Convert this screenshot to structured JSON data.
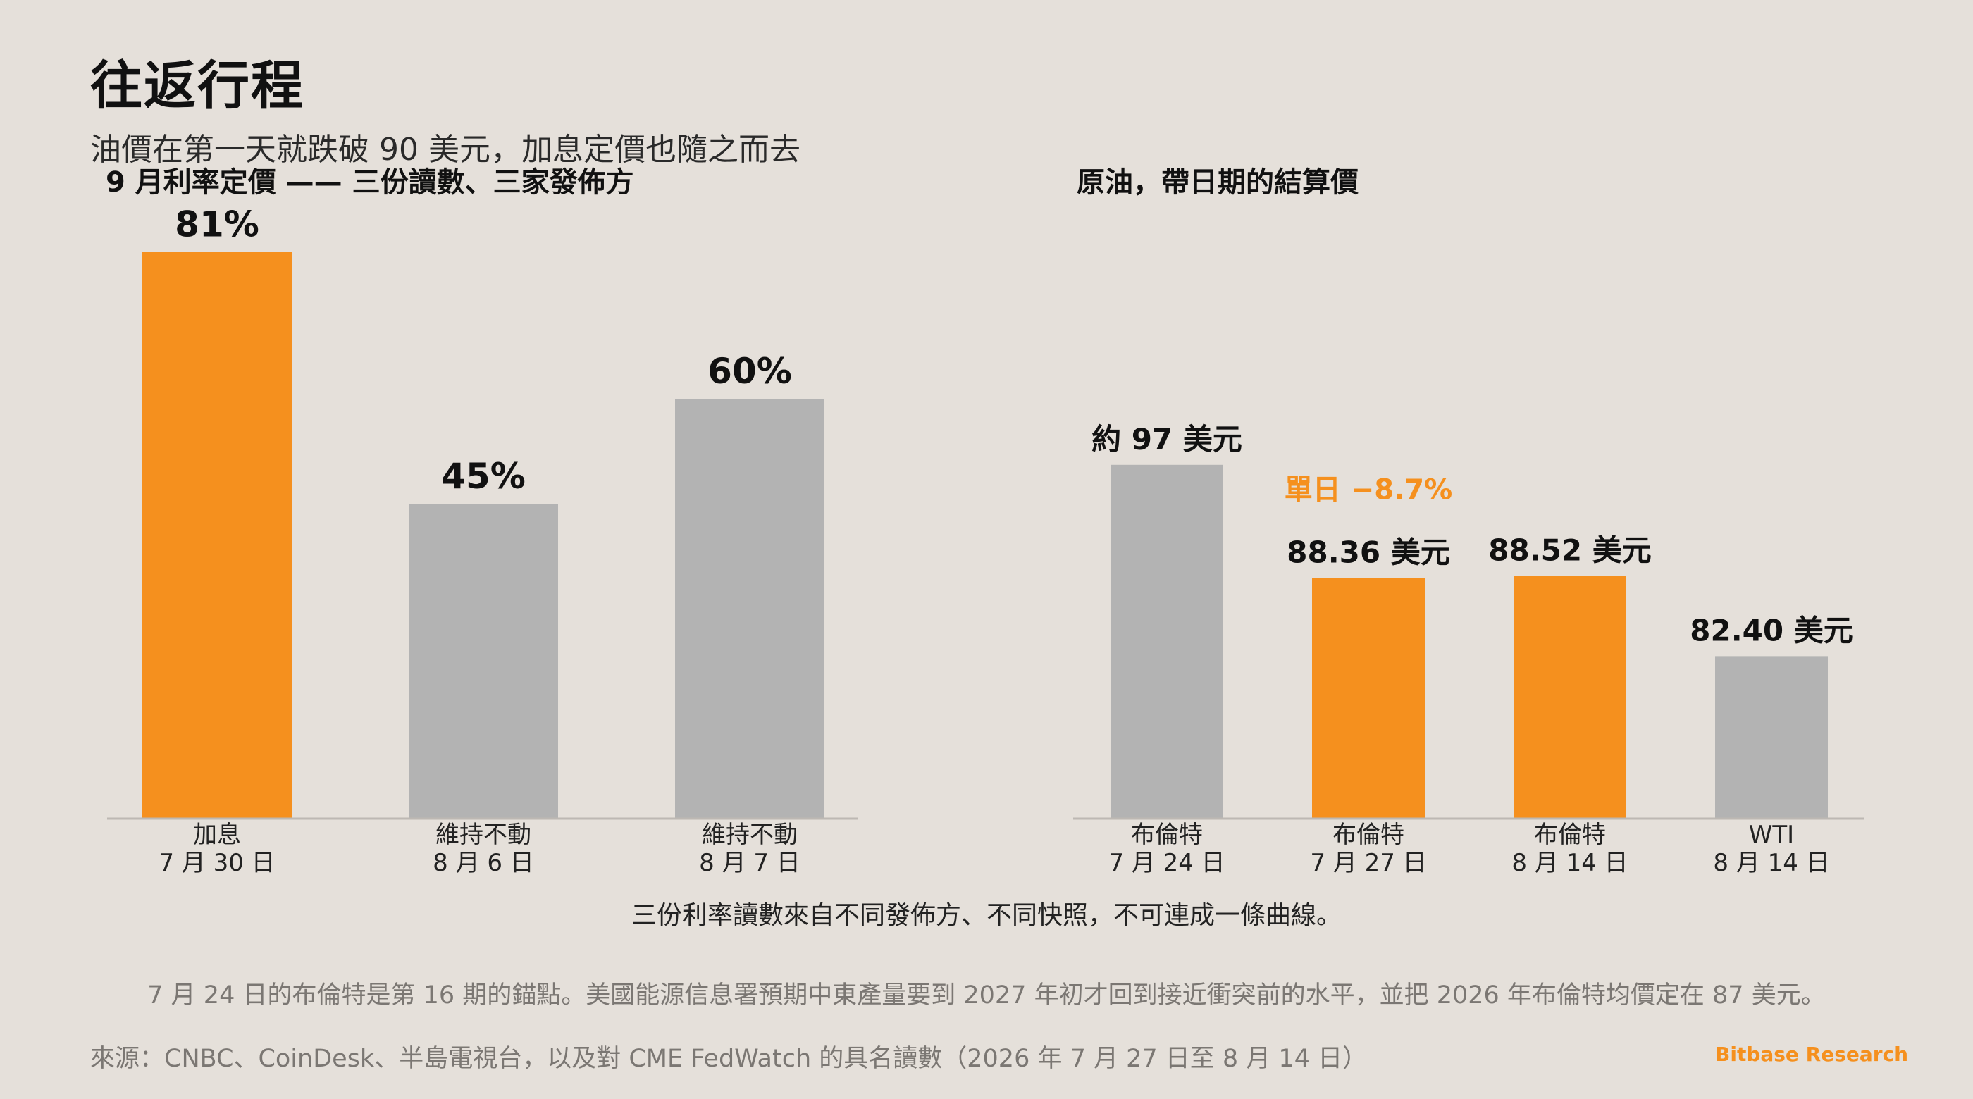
{
  "title": "往返行程",
  "subtitle": "油價在第一天就跌破 90 美元，加息定價也隨之而去",
  "colors": {
    "accent": "#f5901e",
    "neutral": "#b3b3b3",
    "background": "#e5e0da",
    "baseline": "#bdb8b3"
  },
  "chart_data": [
    {
      "type": "bar",
      "title": "9 月利率定價 —— 三份讀數、三家發佈方",
      "categories": [
        {
          "line1": "加息",
          "line2": "7 月 30 日"
        },
        {
          "line1": "維持不動",
          "line2": "8 月 6 日"
        },
        {
          "line1": "維持不動",
          "line2": "8 月 7 日"
        }
      ],
      "values": [
        81,
        45,
        60
      ],
      "value_labels": [
        "81%",
        "45%",
        "60%"
      ],
      "highlight": [
        true,
        false,
        false
      ],
      "ylim": [
        0,
        100
      ],
      "grid": false,
      "xlabel": "",
      "ylabel": ""
    },
    {
      "type": "bar",
      "title": "原油，帶日期的結算價",
      "categories": [
        {
          "line1": "布倫特",
          "line2": "7 月 24 日"
        },
        {
          "line1": "布倫特",
          "line2": "7 月 27 日"
        },
        {
          "line1": "布倫特",
          "line2": "8 月 14 日"
        },
        {
          "line1": "WTI",
          "line2": "8 月 14 日"
        }
      ],
      "values": [
        97,
        88.36,
        88.52,
        82.4
      ],
      "value_labels": [
        "約 97 美元",
        "88.36 美元",
        "88.52 美元",
        "82.40 美元"
      ],
      "highlight": [
        false,
        true,
        true,
        false
      ],
      "annotation": {
        "text": "單日 −8.7%",
        "category_index": 1
      },
      "ylim": [
        70,
        100
      ],
      "grid": false,
      "xlabel": "",
      "ylabel": ""
    }
  ],
  "chart_note": "三份利率讀數來自不同發佈方、不同快照，不可連成一條曲線。",
  "footnote": "7 月 24 日的布倫特是第 16 期的錨點。美國能源信息署預期中東產量要到 2027 年初才回到接近衝突前的水平，並把 2026 年布倫特均價定在 87 美元。",
  "source": "來源：CNBC、CoinDesk、半島電視台，以及對 CME FedWatch 的具名讀數（2026 年 7 月 27 日至 8 月 14 日）",
  "brand": "Bitbase Research"
}
